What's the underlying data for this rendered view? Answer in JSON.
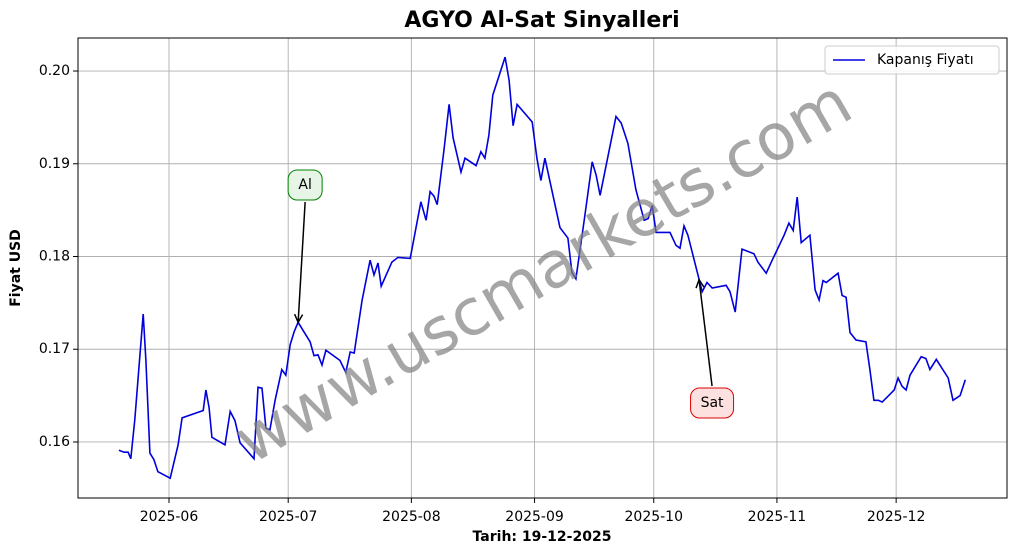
{
  "chart_data": {
    "type": "line",
    "title": "AGYO Al-Sat Sinyalleri",
    "xlabel": "Tarih: 19-12-2025",
    "ylabel": "Fiyat USD",
    "watermark": "www.uscmarkets.com",
    "legend": "upper right",
    "grid": true,
    "xlim": [
      129.1,
      362.9
    ],
    "xticks": [
      {
        "value": 152,
        "label": "2025-06"
      },
      {
        "value": 182,
        "label": "2025-07"
      },
      {
        "value": 213,
        "label": "2025-08"
      },
      {
        "value": 244,
        "label": "2025-09"
      },
      {
        "value": 274,
        "label": "2025-10"
      },
      {
        "value": 305,
        "label": "2025-11"
      },
      {
        "value": 335,
        "label": "2025-12"
      }
    ],
    "ylim": [
      0.15396,
      0.20356
    ],
    "yticks": [
      {
        "value": 0.16,
        "label": "0.16"
      },
      {
        "value": 0.17,
        "label": "0.17"
      },
      {
        "value": 0.18,
        "label": "0.18"
      },
      {
        "value": 0.19,
        "label": "0.19"
      },
      {
        "value": 0.2,
        "label": "0.20"
      }
    ],
    "x": [
      139.4,
      140.7,
      141.7,
      142.4,
      143.4,
      145.5,
      146.2,
      147.2,
      148.2,
      149.2,
      152.3,
      154.3,
      155.3,
      160.6,
      161.3,
      162.1,
      162.8,
      166.1,
      167.4,
      168.6,
      169.9,
      173.4,
      174.4,
      175.4,
      176.4,
      177.4,
      178.7,
      180.4,
      181.4,
      182.5,
      183.5,
      184.5,
      187.5,
      188.5,
      189.5,
      190.5,
      191.5,
      195.0,
      196.5,
      197.6,
      198.6,
      200.6,
      202.6,
      203.6,
      204.6,
      205.4,
      208.1,
      209.6,
      212.7,
      215.4,
      216.7,
      217.7,
      218.7,
      219.5,
      221.2,
      222.5,
      223.5,
      225.5,
      226.5,
      229.3,
      230.5,
      231.5,
      232.5,
      233.5,
      236.6,
      237.6,
      238.6,
      239.6,
      243.4,
      244.6,
      245.6,
      246.6,
      250.4,
      252.4,
      253.4,
      254.4,
      256.5,
      258.5,
      259.5,
      260.5,
      264.5,
      265.8,
      267.5,
      269.5,
      271.6,
      272.6,
      273.6,
      274.6,
      278.1,
      279.6,
      280.6,
      281.6,
      282.6,
      286.2,
      287.4,
      288.7,
      292.2,
      293.2,
      294.5,
      296.2,
      299.2,
      300.2,
      302.3,
      303.8,
      306.8,
      308.0,
      309.1,
      310.1,
      311.1,
      313.3,
      314.6,
      315.6,
      316.6,
      317.4,
      320.4,
      321.4,
      322.4,
      323.4,
      324.9,
      327.4,
      328.4,
      329.4,
      330.5,
      331.5,
      334.5,
      335.5,
      336.5,
      337.5,
      338.5,
      341.3,
      342.5,
      343.5,
      345.1,
      348.1,
      349.3,
      351.1,
      352.4
    ],
    "series": [
      {
        "name": "Kapanış Fiyatı",
        "color": "#0000dd",
        "values": [
          0.1591,
          0.1589,
          0.1589,
          0.1582,
          0.1624,
          0.1738,
          0.1688,
          0.1588,
          0.1581,
          0.1568,
          0.1561,
          0.1597,
          0.1626,
          0.1634,
          0.1656,
          0.1637,
          0.1605,
          0.1597,
          0.1633,
          0.1623,
          0.1599,
          0.1582,
          0.1659,
          0.1658,
          0.1615,
          0.1613,
          0.1645,
          0.1678,
          0.1672,
          0.1705,
          0.1719,
          0.1729,
          0.1708,
          0.1693,
          0.1694,
          0.1683,
          0.1699,
          0.1688,
          0.1675,
          0.1697,
          0.1696,
          0.1753,
          0.1796,
          0.178,
          0.1793,
          0.1768,
          0.1794,
          0.1799,
          0.1798,
          0.1859,
          0.1839,
          0.187,
          0.1865,
          0.1856,
          0.1915,
          0.1964,
          0.1928,
          0.1891,
          0.1906,
          0.1898,
          0.1913,
          0.1906,
          0.1931,
          0.1974,
          0.2015,
          0.199,
          0.1941,
          0.1964,
          0.1945,
          0.1906,
          0.1882,
          0.1906,
          0.1831,
          0.182,
          0.1783,
          0.1776,
          0.1839,
          0.1902,
          0.1888,
          0.1866,
          0.1951,
          0.1944,
          0.1922,
          0.1872,
          0.1839,
          0.1841,
          0.1855,
          0.1826,
          0.1826,
          0.1812,
          0.1809,
          0.1833,
          0.1823,
          0.1762,
          0.1772,
          0.1766,
          0.1769,
          0.1762,
          0.174,
          0.1808,
          0.1803,
          0.1794,
          0.1782,
          0.1796,
          0.1823,
          0.1836,
          0.1828,
          0.1864,
          0.1815,
          0.1823,
          0.1764,
          0.1753,
          0.1774,
          0.1772,
          0.1782,
          0.1758,
          0.1756,
          0.1718,
          0.171,
          0.1708,
          0.1678,
          0.1645,
          0.1645,
          0.1643,
          0.1656,
          0.1669,
          0.166,
          0.1656,
          0.1672,
          0.1692,
          0.169,
          0.1678,
          0.1689,
          0.1669,
          0.1645,
          0.165,
          0.1667
        ]
      }
    ],
    "annotations": [
      {
        "text": "Al",
        "x": 184.5,
        "y": 0.1729,
        "color": "#008000",
        "fill": "#e6f5e6"
      },
      {
        "text": "Sat",
        "x": 285.4,
        "y": 0.1775,
        "color": "#dd0000",
        "fill": "#fde0e0"
      }
    ]
  }
}
